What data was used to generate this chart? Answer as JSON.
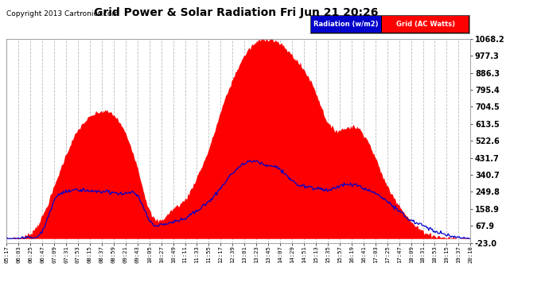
{
  "title": "Grid Power & Solar Radiation Fri Jun 21 20:26",
  "copyright": "Copyright 2013 Cartronics.com",
  "background_color": "#ffffff",
  "plot_bg_color": "#ffffff",
  "grid_color": "#bbbbbb",
  "fill_color": "#ff0000",
  "line_color": "#0000cc",
  "yticks": [
    -23.0,
    67.9,
    158.9,
    249.8,
    340.7,
    431.7,
    522.6,
    613.5,
    704.5,
    795.4,
    886.3,
    977.3,
    1068.2
  ],
  "ymin": -23.0,
  "ymax": 1068.2,
  "xtick_labels": [
    "05:17",
    "06:03",
    "06:25",
    "06:47",
    "07:09",
    "07:31",
    "07:53",
    "08:15",
    "08:37",
    "08:59",
    "09:21",
    "09:43",
    "10:05",
    "10:27",
    "10:49",
    "11:11",
    "11:33",
    "11:55",
    "12:17",
    "12:39",
    "13:01",
    "13:23",
    "13:45",
    "14:07",
    "14:29",
    "14:51",
    "15:13",
    "15:35",
    "15:57",
    "16:19",
    "16:41",
    "17:03",
    "17:25",
    "17:47",
    "18:09",
    "18:31",
    "18:53",
    "19:15",
    "19:37",
    "20:18"
  ],
  "solar_x": [
    0,
    1,
    2,
    3,
    4,
    5,
    6,
    7,
    8,
    9,
    10,
    11,
    12,
    13,
    14,
    15,
    16,
    17,
    18,
    19,
    20,
    21,
    22,
    23,
    24,
    25,
    26,
    27,
    28,
    29,
    30,
    31,
    32,
    33,
    34,
    35,
    36,
    37,
    38,
    39
  ],
  "solar_y": [
    0,
    5,
    30,
    120,
    280,
    450,
    580,
    650,
    680,
    660,
    560,
    380,
    150,
    100,
    160,
    210,
    330,
    480,
    680,
    850,
    980,
    1050,
    1068,
    1040,
    980,
    900,
    780,
    620,
    580,
    600,
    560,
    430,
    280,
    180,
    90,
    40,
    15,
    5,
    2,
    0
  ],
  "grid_x": [
    0,
    1,
    2,
    3,
    4,
    5,
    6,
    7,
    8,
    9,
    10,
    11,
    12,
    13,
    14,
    15,
    16,
    17,
    18,
    19,
    20,
    21,
    22,
    23,
    24,
    25,
    26,
    27,
    28,
    29,
    30,
    31,
    32,
    33,
    34,
    35,
    36,
    37,
    38,
    39
  ],
  "grid_y": [
    0,
    0,
    5,
    40,
    200,
    250,
    260,
    255,
    250,
    245,
    240,
    230,
    100,
    70,
    90,
    110,
    150,
    200,
    270,
    350,
    400,
    410,
    390,
    370,
    310,
    280,
    270,
    260,
    280,
    290,
    270,
    240,
    200,
    150,
    100,
    70,
    40,
    20,
    5,
    0
  ]
}
